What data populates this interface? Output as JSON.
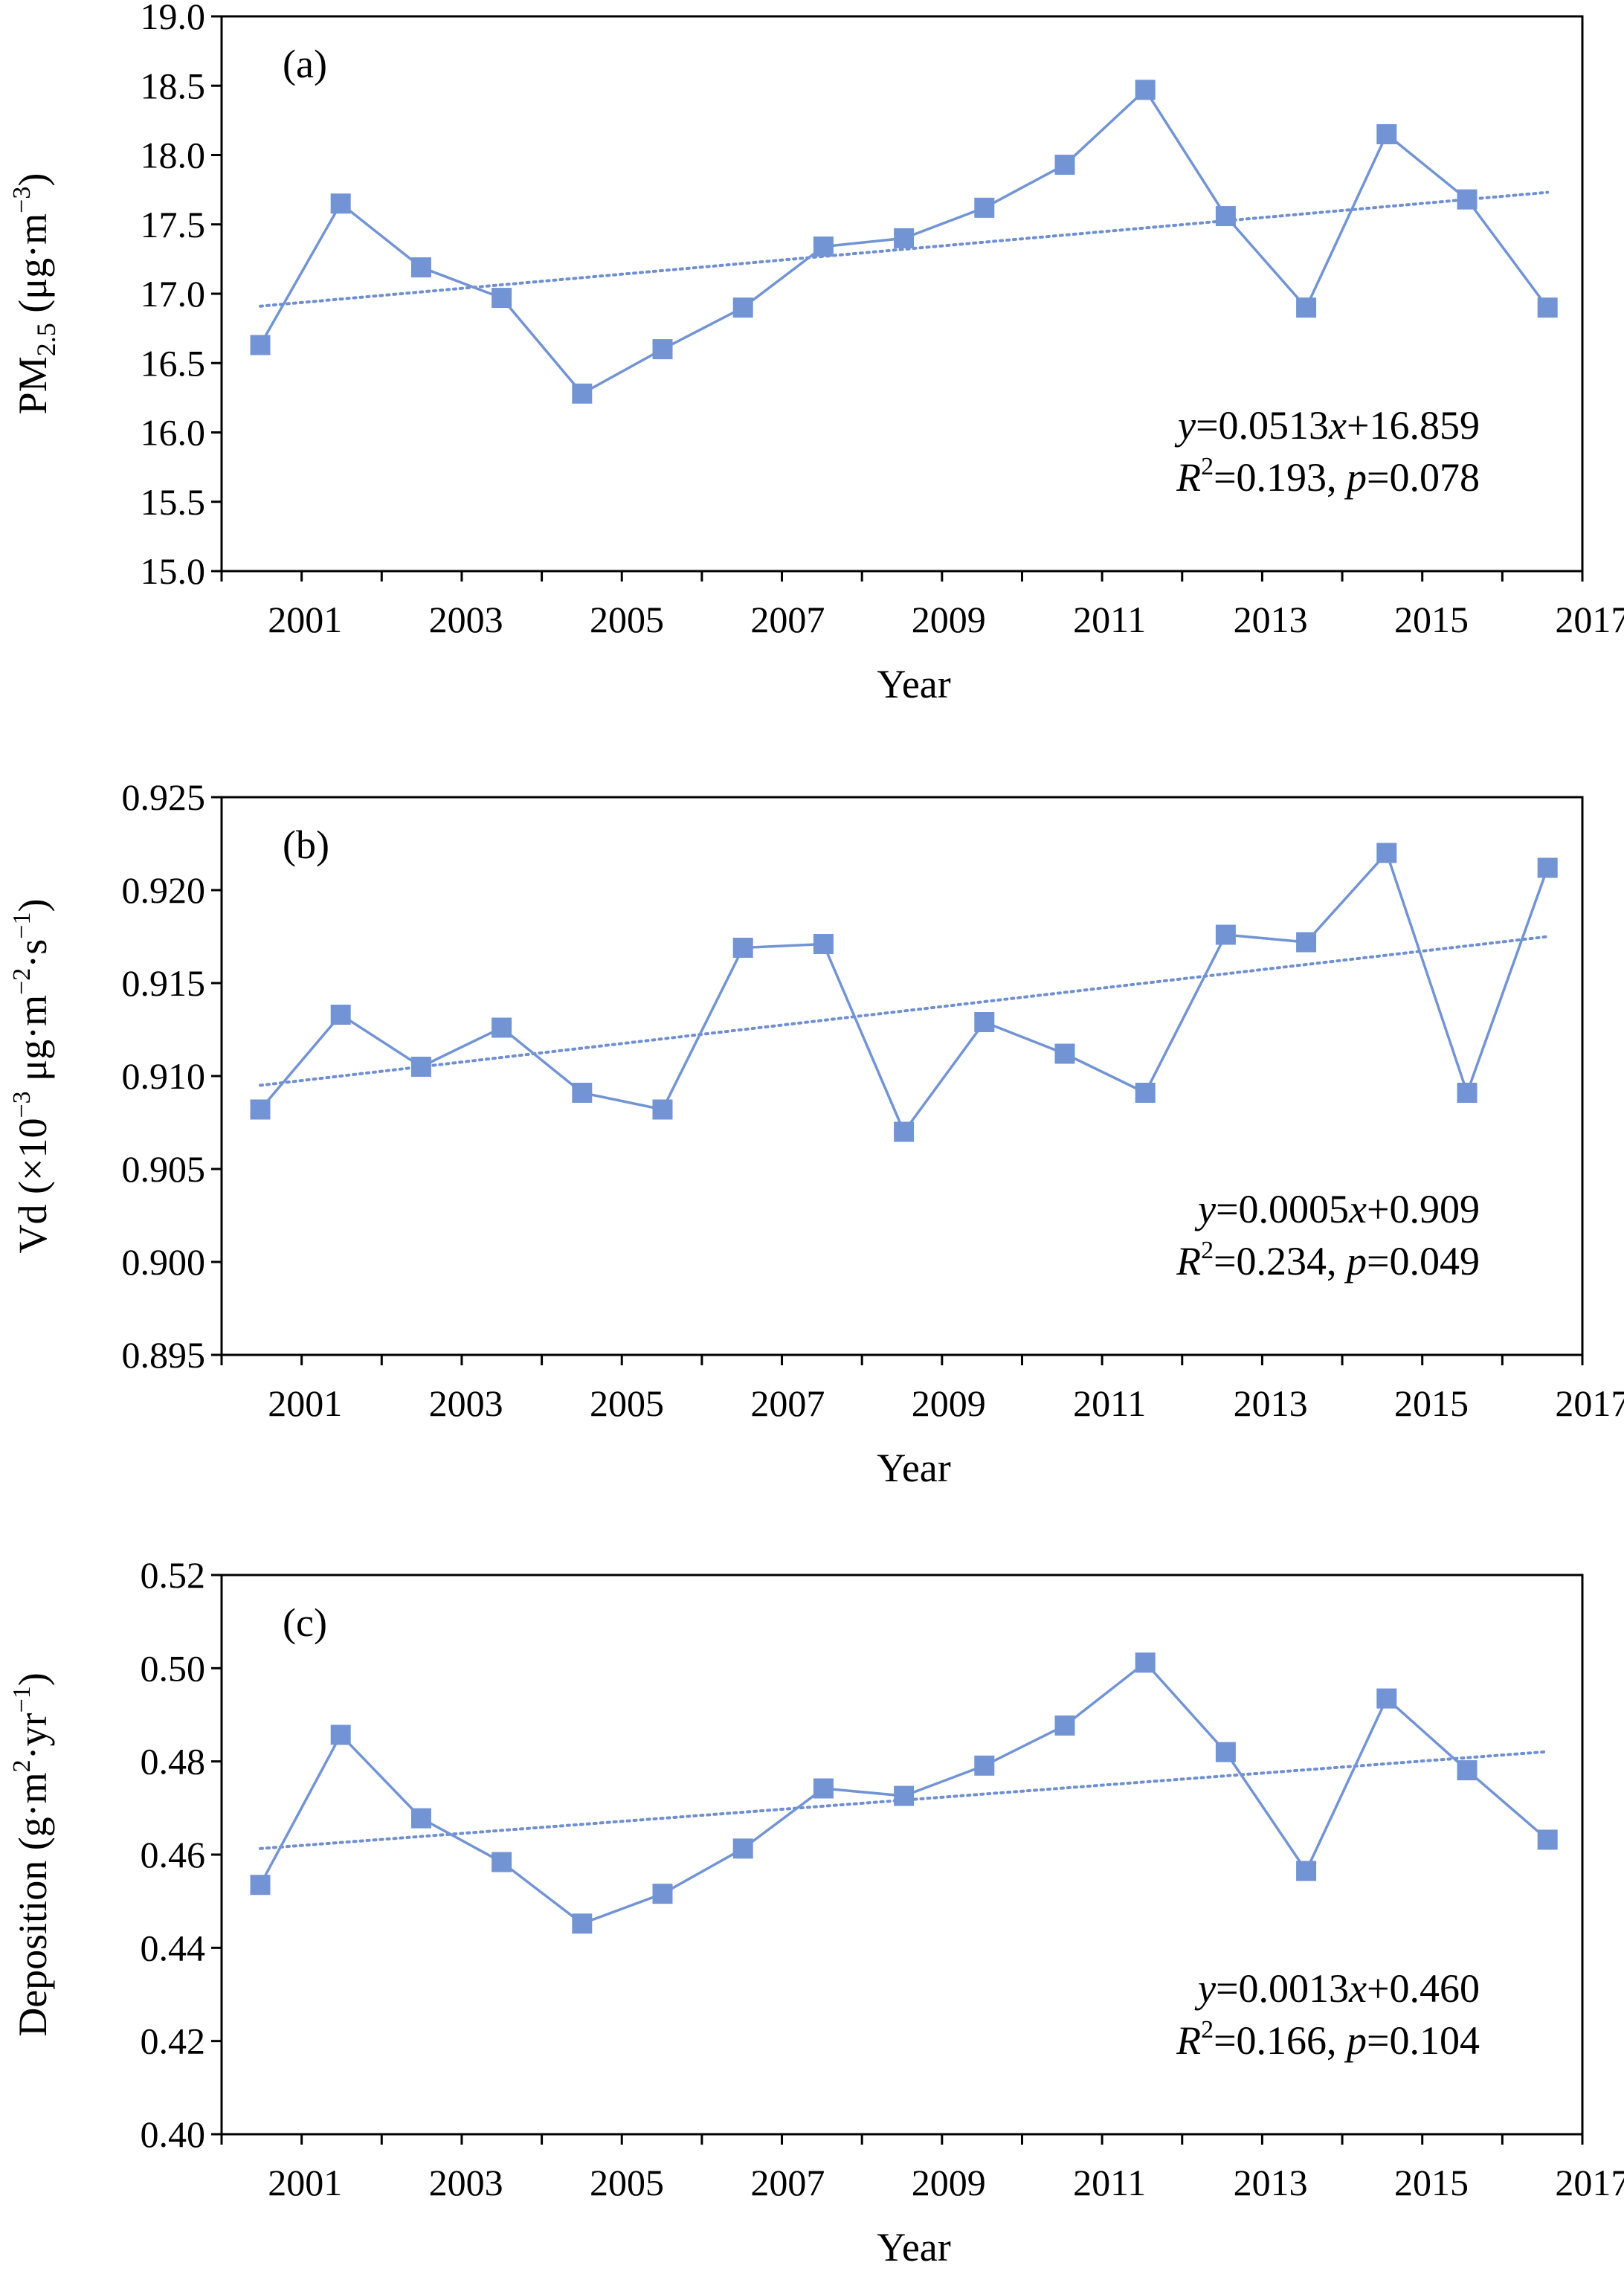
{
  "colors": {
    "series": "#7294d4",
    "trend": "#6f8fd0",
    "axis": "#000000"
  },
  "chart_data": [
    {
      "type": "line",
      "panel_label": "(a)",
      "xlabel": "Year",
      "ylabel_main": "PM",
      "ylabel_sub": "2.5",
      "ylabel_rest": " (μg·m",
      "ylabel_sup": "−3",
      "ylabel_end": ")",
      "x": [
        2000,
        2001,
        2002,
        2003,
        2004,
        2005,
        2006,
        2007,
        2008,
        2009,
        2010,
        2011,
        2012,
        2013,
        2014,
        2015,
        2016
      ],
      "values": [
        16.63,
        17.65,
        17.19,
        16.97,
        16.28,
        16.6,
        16.9,
        17.34,
        17.4,
        17.62,
        17.93,
        18.47,
        17.56,
        16.9,
        18.15,
        17.68,
        16.9
      ],
      "xticks": [
        "2001",
        "2003",
        "2005",
        "2007",
        "2009",
        "2011",
        "2013",
        "2015",
        "2017"
      ],
      "yticks": [
        "15.0",
        "15.5",
        "16.0",
        "16.5",
        "17.0",
        "17.5",
        "18.0",
        "18.5",
        "19.0"
      ],
      "ylim": [
        15.0,
        19.0
      ],
      "trend": {
        "slope": 0.0513,
        "intercept": 16.859
      },
      "equation": {
        "y": "y",
        "eq1": "=0.0513",
        "x": "x",
        "eq2": "+16.859",
        "R": "R",
        "sup": "2",
        "eq3": "=0.193, ",
        "p": "p",
        "eq4": "=0.078"
      }
    },
    {
      "type": "line",
      "panel_label": "(b)",
      "xlabel": "Year",
      "ylabel_main": "Vd (×10",
      "ylabel_sup": "−3",
      "ylabel_rest": " μg·m",
      "ylabel_sup2": "−2",
      "ylabel_rest2": "·s",
      "ylabel_sup3": "−1",
      "ylabel_end": ")",
      "x": [
        2000,
        2001,
        2002,
        2003,
        2004,
        2005,
        2006,
        2007,
        2008,
        2009,
        2010,
        2011,
        2012,
        2013,
        2014,
        2015,
        2016
      ],
      "values": [
        0.9082,
        0.9133,
        0.9105,
        0.9126,
        0.9091,
        0.9082,
        0.9169,
        0.9171,
        0.907,
        0.9129,
        0.9112,
        0.9091,
        0.9176,
        0.9172,
        0.922,
        0.9091,
        0.9212
      ],
      "xticks": [
        "2001",
        "2003",
        "2005",
        "2007",
        "2009",
        "2011",
        "2013",
        "2015",
        "2017"
      ],
      "yticks": [
        "0.895",
        "0.900",
        "0.905",
        "0.910",
        "0.915",
        "0.920",
        "0.925"
      ],
      "ylim": [
        0.895,
        0.925
      ],
      "trend": {
        "slope": 0.0005,
        "intercept": 0.909
      },
      "equation": {
        "y": "y",
        "eq1": "=0.0005",
        "x": "x",
        "eq2": "+0.909",
        "R": "R",
        "sup": "2",
        "eq3": "=0.234, ",
        "p": "p",
        "eq4": "=0.049"
      }
    },
    {
      "type": "line",
      "panel_label": "(c)",
      "xlabel": "Year",
      "ylabel_main": "Deposition (g·m",
      "ylabel_sup": "2",
      "ylabel_rest": "·yr",
      "ylabel_sup2": "−1",
      "ylabel_end": ")",
      "x": [
        2000,
        2001,
        2002,
        2003,
        2004,
        2005,
        2006,
        2007,
        2008,
        2009,
        2010,
        2011,
        2012,
        2013,
        2014,
        2015,
        2016
      ],
      "values": [
        0.4535,
        0.4857,
        0.4678,
        0.4584,
        0.4452,
        0.4516,
        0.4613,
        0.4742,
        0.4726,
        0.4791,
        0.4877,
        0.5012,
        0.482,
        0.4565,
        0.4935,
        0.4781,
        0.4632
      ],
      "xticks": [
        "2001",
        "2003",
        "2005",
        "2007",
        "2009",
        "2011",
        "2013",
        "2015",
        "2017"
      ],
      "yticks": [
        "0.40",
        "0.42",
        "0.44",
        "0.46",
        "0.48",
        "0.50",
        "0.52"
      ],
      "ylim": [
        0.4,
        0.52
      ],
      "trend": {
        "slope": 0.0013,
        "intercept": 0.46
      },
      "equation": {
        "y": "y",
        "eq1": "=0.0013",
        "x": "x",
        "eq2": "+0.460",
        "R": "R",
        "sup": "2",
        "eq3": "=0.166, ",
        "p": "p",
        "eq4": "=0.104"
      }
    }
  ]
}
